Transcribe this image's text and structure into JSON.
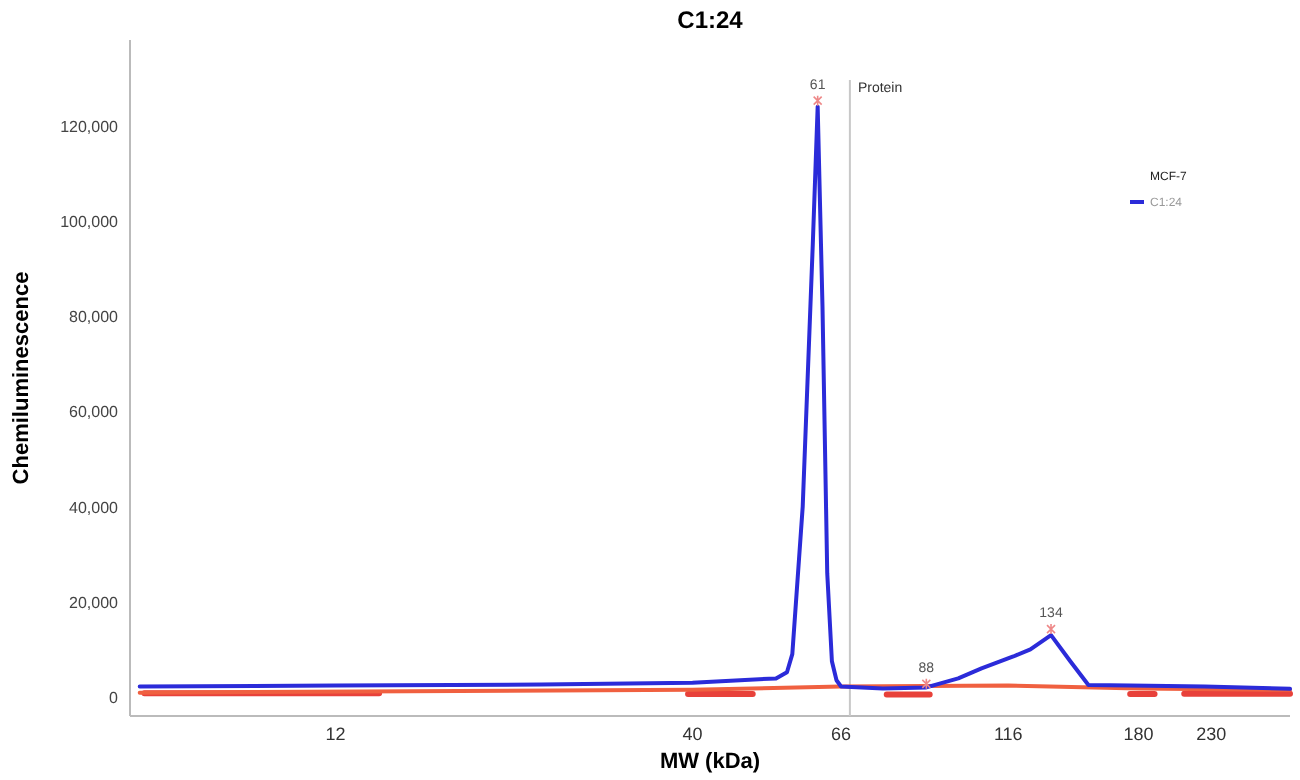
{
  "chart_data": {
    "type": "line",
    "title": "C1:24",
    "xlabel": "MW (kDa)",
    "ylabel": "Chemiluminescence",
    "log": "x",
    "xlim": [
      6,
      300
    ],
    "xticks": [
      12,
      40,
      66,
      116,
      180,
      230
    ],
    "ylim": [
      -4000,
      138000
    ],
    "yticks": [
      {
        "value": 0,
        "label": "0"
      },
      {
        "value": 20000,
        "label": "20,000"
      },
      {
        "value": 40000,
        "label": "40,000"
      },
      {
        "value": 60000,
        "label": "60,000"
      },
      {
        "value": 80000,
        "label": "80,000"
      },
      {
        "value": 100000,
        "label": "100,000"
      },
      {
        "value": 120000,
        "label": "120,000"
      }
    ],
    "grid": false,
    "legend": "top right",
    "legend_title": "MCF-7",
    "marker": "none",
    "line_style": "solid",
    "series": [
      {
        "name": "C1:24",
        "color": "#2b2bd9",
        "x": [
          6.2,
          12,
          24,
          40,
          53,
          55,
          56,
          58,
          60,
          61,
          62,
          63,
          64,
          65,
          66,
          76,
          88,
          98,
          106,
          118,
          125,
          134,
          143,
          152,
          175,
          225,
          300
        ],
        "values": [
          2200,
          2400,
          2600,
          3000,
          3900,
          5200,
          9000,
          40000,
          95000,
          124000,
          82000,
          26000,
          7500,
          3500,
          2200,
          1800,
          2000,
          3900,
          6000,
          8500,
          10000,
          13000,
          7500,
          2500,
          2400,
          2200,
          1700
        ]
      },
      {
        "color": "#f06040",
        "x": [
          6.2,
          40,
          66,
          116,
          180,
          300
        ],
        "values": [
          900,
          1500,
          2200,
          2400,
          1800,
          1500
        ]
      },
      {
        "color": "#e8413a",
        "x": [
          6.3,
          13.9,
          13.95,
          39.4,
          49,
          49.1,
          77,
          89,
          89.1,
          175,
          190,
          190.1,
          210,
          300
        ],
        "values": [
          800,
          800,
          null,
          600,
          600,
          null,
          500,
          500,
          null,
          600,
          600,
          null,
          700,
          700
        ]
      }
    ],
    "ref_lines": [
      {
        "axis": "x",
        "value": 68,
        "label": "Protein",
        "color": "#c8c8c8"
      }
    ],
    "annotations": [
      {
        "text": "61",
        "x": 61,
        "y": 124000
      },
      {
        "text": "88",
        "x": 88,
        "y": 1500
      },
      {
        "text": "134",
        "x": 134,
        "y": 13000
      }
    ]
  }
}
